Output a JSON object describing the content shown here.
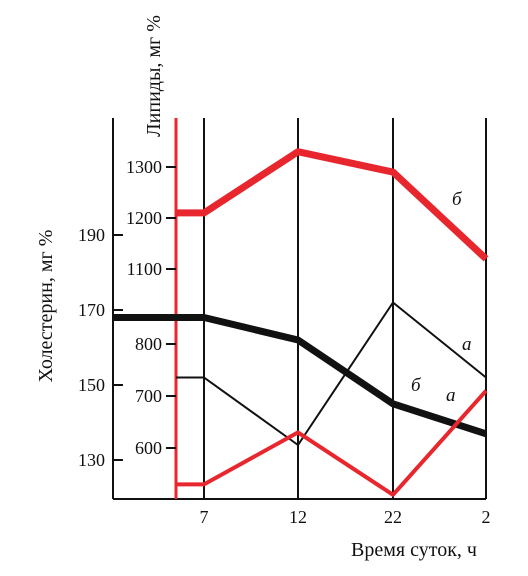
{
  "chart_data": {
    "type": "line",
    "x_categories": [
      "7",
      "12",
      "22",
      "2"
    ],
    "xlabel": "Время суток, ч",
    "y_left": {
      "label": "Холестерин, мг %",
      "ticks": [
        "130",
        "150",
        "170",
        "190"
      ],
      "range": [
        125,
        205
      ]
    },
    "y_right": {
      "label": "Липиды, мг %",
      "ticks": [
        "600",
        "700",
        "800",
        "1100",
        "1200",
        "1300"
      ],
      "tick_values": [
        600,
        700,
        800,
        1100,
        1200,
        1300
      ],
      "axis_break": "between 800 and 1100"
    },
    "colors": {
      "black": "#111111",
      "red": "#e8262d"
    },
    "series": [
      {
        "label": "б",
        "axis": "left",
        "color": "#111111",
        "stroke": "thick",
        "x": [
          "5",
          "7",
          "12",
          "22",
          "2"
        ],
        "values": [
          168,
          168,
          162,
          145,
          137
        ]
      },
      {
        "label": "а",
        "axis": "left",
        "color": "#111111",
        "stroke": "thin",
        "x": [
          "5",
          "7",
          "12",
          "22",
          "2"
        ],
        "values": [
          152,
          152,
          134,
          172,
          152
        ]
      },
      {
        "label": "б",
        "axis": "right",
        "color": "#e8262d",
        "stroke": "thick",
        "x": [
          "5",
          "7",
          "12",
          "22",
          "2"
        ],
        "values": [
          1210,
          1210,
          1330,
          1290,
          1120
        ]
      },
      {
        "label": "а",
        "axis": "right",
        "color": "#e8262d",
        "stroke": "medium",
        "x": [
          "5",
          "7",
          "12",
          "22",
          "2"
        ],
        "values": [
          530,
          530,
          630,
          510,
          710
        ]
      }
    ]
  }
}
